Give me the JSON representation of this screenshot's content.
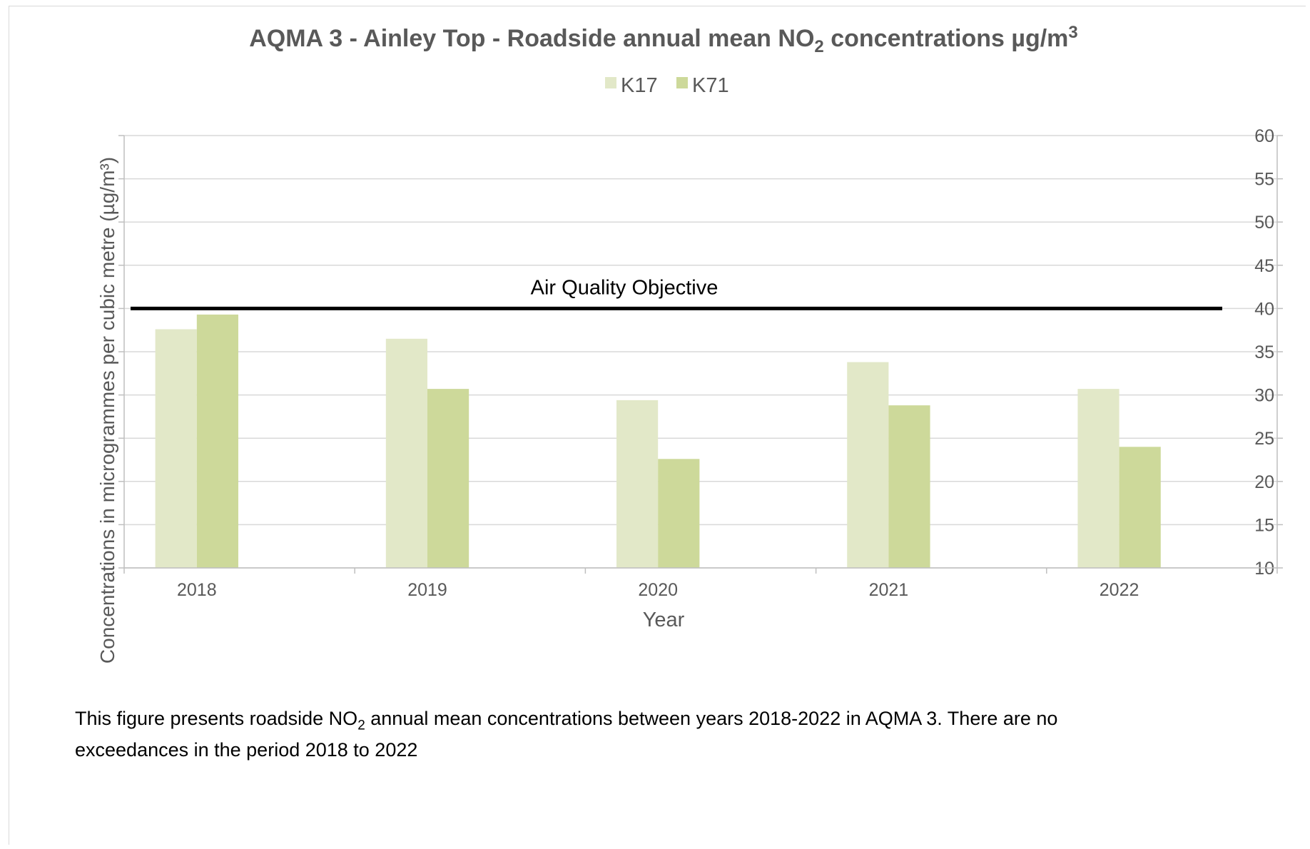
{
  "chart_data": {
    "type": "bar",
    "title_prefix": "AQMA 3 - Ainley Top - Roadside annual mean NO",
    "title_sub": "2",
    "title_suffix": " concentrations µg/m",
    "title_sup": "3",
    "xlabel": "Year",
    "ylabel": "Concentrations in microgrammes per cubic metre (µg/m³)",
    "y_axis_side": "right",
    "ylim": [
      10,
      60
    ],
    "yticks": [
      10,
      15,
      20,
      25,
      30,
      35,
      40,
      45,
      50,
      55,
      60
    ],
    "grid": true,
    "legend_position": "top-center",
    "categories": [
      "2018",
      "2019",
      "2020",
      "2021",
      "2022"
    ],
    "series": [
      {
        "name": "K17",
        "color": "#e2e8c8",
        "values": [
          37.6,
          36.5,
          29.4,
          33.8,
          30.7
        ]
      },
      {
        "name": "K71",
        "color": "#cdd99a",
        "values": [
          39.3,
          30.7,
          22.6,
          28.8,
          24.0
        ]
      }
    ],
    "objective": {
      "label": "Air Quality Objective",
      "value": 40,
      "color": "#000000"
    }
  },
  "caption": {
    "line1_prefix": "This figure presents roadside NO",
    "line1_sub": "2",
    "line1_suffix": " annual mean concentrations between years 2018-2022 in AQMA 3.  There are no",
    "line2": "exceedances in the period 2018 to 2022"
  }
}
